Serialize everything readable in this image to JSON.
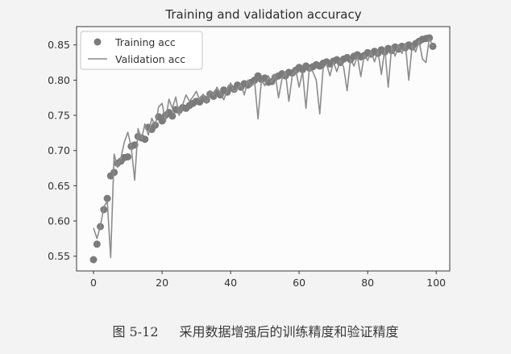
{
  "chart_data": {
    "type": "line",
    "title": "Training and validation accuracy",
    "xlabel": "",
    "ylabel": "",
    "xlim": [
      -4.95,
      103.95
    ],
    "ylim": [
      0.529,
      0.876
    ],
    "xticks": [
      "0",
      "20",
      "40",
      "60",
      "80",
      "100"
    ],
    "yticks": [
      "0.55",
      "0.60",
      "0.65",
      "0.70",
      "0.75",
      "0.80",
      "0.85"
    ],
    "grid": false,
    "legend": "upper left",
    "x": [
      0,
      1,
      2,
      3,
      4,
      5,
      6,
      7,
      8,
      9,
      10,
      11,
      12,
      13,
      14,
      15,
      16,
      17,
      18,
      19,
      20,
      21,
      22,
      23,
      24,
      25,
      26,
      27,
      28,
      29,
      30,
      31,
      32,
      33,
      34,
      35,
      36,
      37,
      38,
      39,
      40,
      41,
      42,
      43,
      44,
      45,
      46,
      47,
      48,
      49,
      50,
      51,
      52,
      53,
      54,
      55,
      56,
      57,
      58,
      59,
      60,
      61,
      62,
      63,
      64,
      65,
      66,
      67,
      68,
      69,
      70,
      71,
      72,
      73,
      74,
      75,
      76,
      77,
      78,
      79,
      80,
      81,
      82,
      83,
      84,
      85,
      86,
      87,
      88,
      89,
      90,
      91,
      92,
      93,
      94,
      95,
      96,
      97,
      98,
      99
    ],
    "series": [
      {
        "name": "Training acc",
        "style": "dots",
        "color": "#7b7b7b",
        "values": [
          0.545,
          0.567,
          0.592,
          0.616,
          0.632,
          0.664,
          0.669,
          0.682,
          0.685,
          0.69,
          0.691,
          0.706,
          0.708,
          0.72,
          0.718,
          0.716,
          0.733,
          0.73,
          0.736,
          0.748,
          0.742,
          0.75,
          0.754,
          0.749,
          0.758,
          0.757,
          0.761,
          0.76,
          0.764,
          0.767,
          0.77,
          0.769,
          0.774,
          0.772,
          0.78,
          0.777,
          0.782,
          0.779,
          0.786,
          0.783,
          0.789,
          0.787,
          0.793,
          0.79,
          0.795,
          0.793,
          0.797,
          0.8,
          0.806,
          0.801,
          0.803,
          0.797,
          0.798,
          0.804,
          0.806,
          0.809,
          0.806,
          0.811,
          0.81,
          0.814,
          0.818,
          0.815,
          0.82,
          0.817,
          0.819,
          0.822,
          0.82,
          0.824,
          0.826,
          0.823,
          0.827,
          0.829,
          0.825,
          0.83,
          0.832,
          0.829,
          0.834,
          0.836,
          0.833,
          0.835,
          0.839,
          0.837,
          0.841,
          0.838,
          0.843,
          0.84,
          0.845,
          0.842,
          0.847,
          0.844,
          0.848,
          0.846,
          0.85,
          0.847,
          0.852,
          0.855,
          0.858,
          0.859,
          0.86,
          0.848
        ]
      },
      {
        "name": "Validation acc",
        "style": "line",
        "color": "#8c8c8c",
        "values": [
          0.59,
          0.575,
          0.592,
          0.62,
          0.628,
          0.548,
          0.695,
          0.676,
          0.69,
          0.712,
          0.726,
          0.705,
          0.658,
          0.731,
          0.716,
          0.738,
          0.722,
          0.746,
          0.735,
          0.762,
          0.767,
          0.741,
          0.773,
          0.76,
          0.776,
          0.75,
          0.765,
          0.779,
          0.77,
          0.776,
          0.784,
          0.772,
          0.78,
          0.767,
          0.785,
          0.778,
          0.79,
          0.781,
          0.772,
          0.786,
          0.796,
          0.783,
          0.788,
          0.793,
          0.779,
          0.8,
          0.791,
          0.798,
          0.745,
          0.8,
          0.792,
          0.806,
          0.797,
          0.808,
          0.775,
          0.802,
          0.812,
          0.77,
          0.806,
          0.815,
          0.79,
          0.812,
          0.76,
          0.818,
          0.812,
          0.8,
          0.752,
          0.817,
          0.823,
          0.806,
          0.826,
          0.812,
          0.828,
          0.818,
          0.785,
          0.83,
          0.82,
          0.834,
          0.805,
          0.836,
          0.828,
          0.84,
          0.826,
          0.842,
          0.808,
          0.845,
          0.79,
          0.848,
          0.834,
          0.85,
          0.838,
          0.852,
          0.8,
          0.85,
          0.84,
          0.856,
          0.83,
          0.825,
          0.86,
          0.848
        ]
      }
    ]
  },
  "caption": {
    "label": "图 5-12",
    "text": "采用数据增强后的训练精度和验证精度"
  }
}
